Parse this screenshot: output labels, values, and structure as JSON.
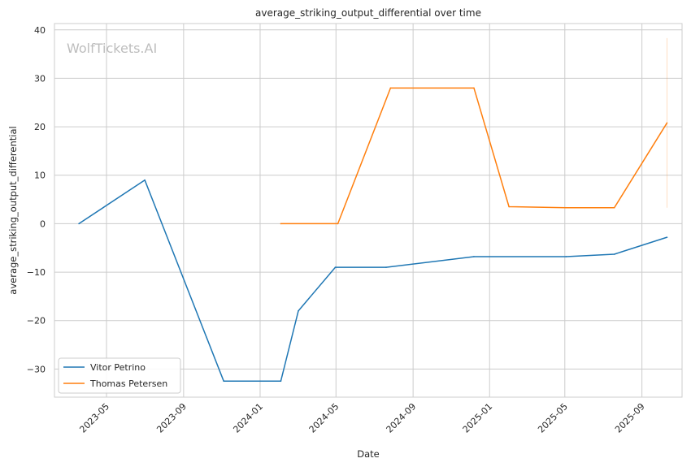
{
  "chart_data": {
    "type": "line",
    "title": "average_striking_output_differential over time",
    "xlabel": "Date",
    "ylabel": "average_striking_output_differential",
    "watermark": "WolfTickets.AI",
    "x_ticks": [
      "2023-05",
      "2023-09",
      "2024-01",
      "2024-05",
      "2024-09",
      "2025-01",
      "2025-05",
      "2025-09"
    ],
    "y_ticks": [
      40,
      30,
      20,
      10,
      0,
      -10,
      -20,
      -30
    ],
    "y_tick_labels": [
      "40",
      "30",
      "20",
      "10",
      "0",
      "−10",
      "−20",
      "−30"
    ],
    "xlim": [
      "2023-02-07",
      "2025-11-04"
    ],
    "ylim": [
      -35.8,
      41.3
    ],
    "grid": true,
    "legend_position": "lower-left",
    "series": [
      {
        "name": "Vitor Petrino",
        "color": "#1f77b4",
        "points": [
          {
            "x": "2023-03-18",
            "y": 0
          },
          {
            "x": "2023-07-01",
            "y": 9
          },
          {
            "x": "2023-11-04",
            "y": -32.5
          },
          {
            "x": "2024-02-03",
            "y": -32.5
          },
          {
            "x": "2024-03-02",
            "y": -18
          },
          {
            "x": "2024-04-30",
            "y": -9
          },
          {
            "x": "2024-07-20",
            "y": -9
          },
          {
            "x": "2024-12-07",
            "y": -6.8
          },
          {
            "x": "2025-05-03",
            "y": -6.8
          },
          {
            "x": "2025-07-19",
            "y": -6.3
          },
          {
            "x": "2025-10-11",
            "y": -2.8
          }
        ]
      },
      {
        "name": "Thomas Petersen",
        "color": "#ff7f0e",
        "points": [
          {
            "x": "2024-02-03",
            "y": 0
          },
          {
            "x": "2024-05-04",
            "y": 0
          },
          {
            "x": "2024-07-27",
            "y": 28
          },
          {
            "x": "2024-12-07",
            "y": 28
          },
          {
            "x": "2025-02-01",
            "y": 3.5
          },
          {
            "x": "2025-05-03",
            "y": 3.3
          },
          {
            "x": "2025-07-19",
            "y": 3.3
          },
          {
            "x": "2025-10-11",
            "y": 20.8
          }
        ]
      }
    ],
    "range_band": {
      "x": "2025-10-11",
      "y_low": 3.3,
      "y_high": 38.3,
      "color": "#ff7f0e"
    }
  }
}
